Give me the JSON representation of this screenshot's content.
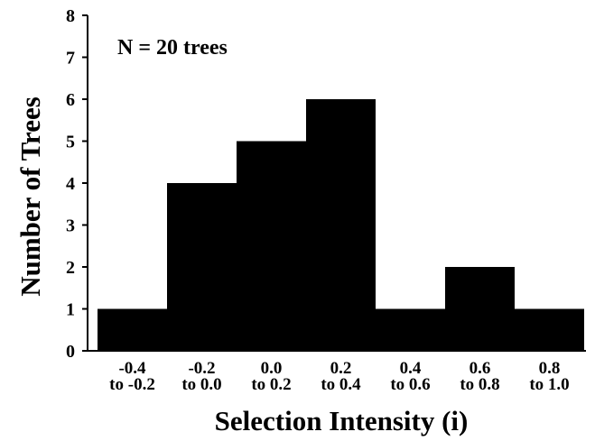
{
  "chart_data": {
    "type": "bar",
    "title": "",
    "xlabel": "Selection Intensity (i)",
    "ylabel": "Number of Trees",
    "annotation": "N = 20 trees",
    "categories": [
      [
        "-0.4",
        "to -0.2"
      ],
      [
        "-0.2",
        "to 0.0"
      ],
      [
        "0.0",
        "to 0.2"
      ],
      [
        "0.2",
        "to 0.4"
      ],
      [
        "0.4",
        "to 0.6"
      ],
      [
        "0.6",
        "to 0.8"
      ],
      [
        "0.8",
        "to 1.0"
      ]
    ],
    "values": [
      1,
      4,
      5,
      6,
      1,
      2,
      1
    ],
    "ylim": [
      0,
      8
    ],
    "yticks": [
      0,
      1,
      2,
      3,
      4,
      5,
      6,
      7,
      8
    ],
    "grid": false,
    "bar_color": "#000000"
  }
}
